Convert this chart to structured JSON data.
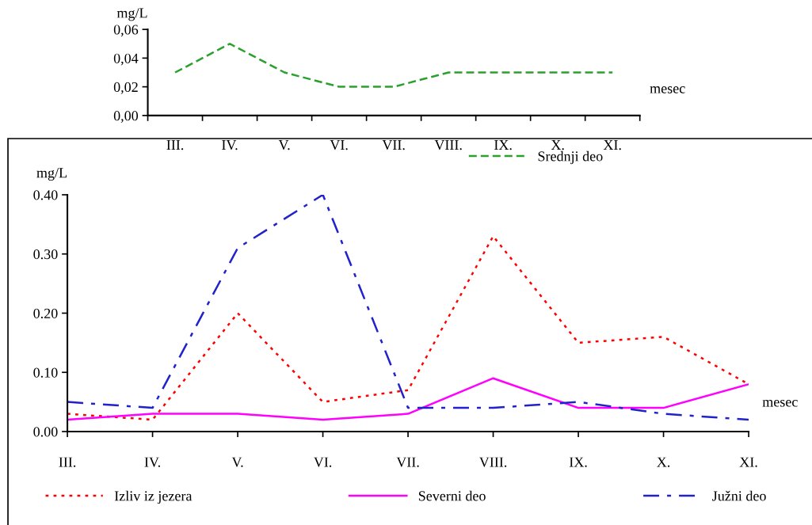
{
  "chart_data": [
    {
      "type": "line",
      "categories": [
        "III.",
        "IV.",
        "V.",
        "VI.",
        "VII.",
        "VIII.",
        "IX.",
        "X.",
        "XI."
      ],
      "ylabel": "mg/L",
      "xlabel": "mesec",
      "ylim": [
        0,
        0.06
      ],
      "yticks": [
        {
          "value": 0,
          "label": "0,00"
        },
        {
          "value": 0.02,
          "label": "0,02"
        },
        {
          "value": 0.04,
          "label": "0,04"
        },
        {
          "value": 0.06,
          "label": "0,06"
        }
      ],
      "grid": false,
      "legend": "bottom right",
      "series": [
        {
          "name": "Srednji deo",
          "color": "#2ca02c",
          "line_style": "dashed",
          "values": [
            0.03,
            0.05,
            0.03,
            0.02,
            0.02,
            0.03,
            0.03,
            0.03,
            0.03
          ]
        }
      ]
    },
    {
      "type": "line",
      "categories": [
        "III.",
        "IV.",
        "V.",
        "VI.",
        "VII.",
        "VIII.",
        "IX.",
        "X.",
        "XI."
      ],
      "ylabel": "mg/L",
      "xlabel": "mesec",
      "ylim": [
        0,
        0.4
      ],
      "yticks": [
        {
          "value": 0,
          "label": "0.00"
        },
        {
          "value": 0.1,
          "label": "0.10"
        },
        {
          "value": 0.2,
          "label": "0.20"
        },
        {
          "value": 0.3,
          "label": "0.30"
        },
        {
          "value": 0.4,
          "label": "0.40"
        }
      ],
      "grid": false,
      "legend": "bottom",
      "series": [
        {
          "name": "Izliv iz jezera",
          "color": "#ff0000",
          "line_style": "dotted",
          "values": [
            0.03,
            0.02,
            0.2,
            0.05,
            0.07,
            0.33,
            0.15,
            0.16,
            0.08
          ]
        },
        {
          "name": "Severni deo",
          "color": "#ff00ff",
          "line_style": "solid",
          "values": [
            0.02,
            0.03,
            0.03,
            0.02,
            0.03,
            0.09,
            0.04,
            0.04,
            0.08
          ]
        },
        {
          "name": "Južni deo",
          "color": "#2222cc",
          "line_style": "dashdot",
          "values": [
            0.05,
            0.04,
            0.31,
            0.4,
            0.04,
            0.04,
            0.05,
            0.03,
            0.02
          ]
        }
      ]
    }
  ]
}
